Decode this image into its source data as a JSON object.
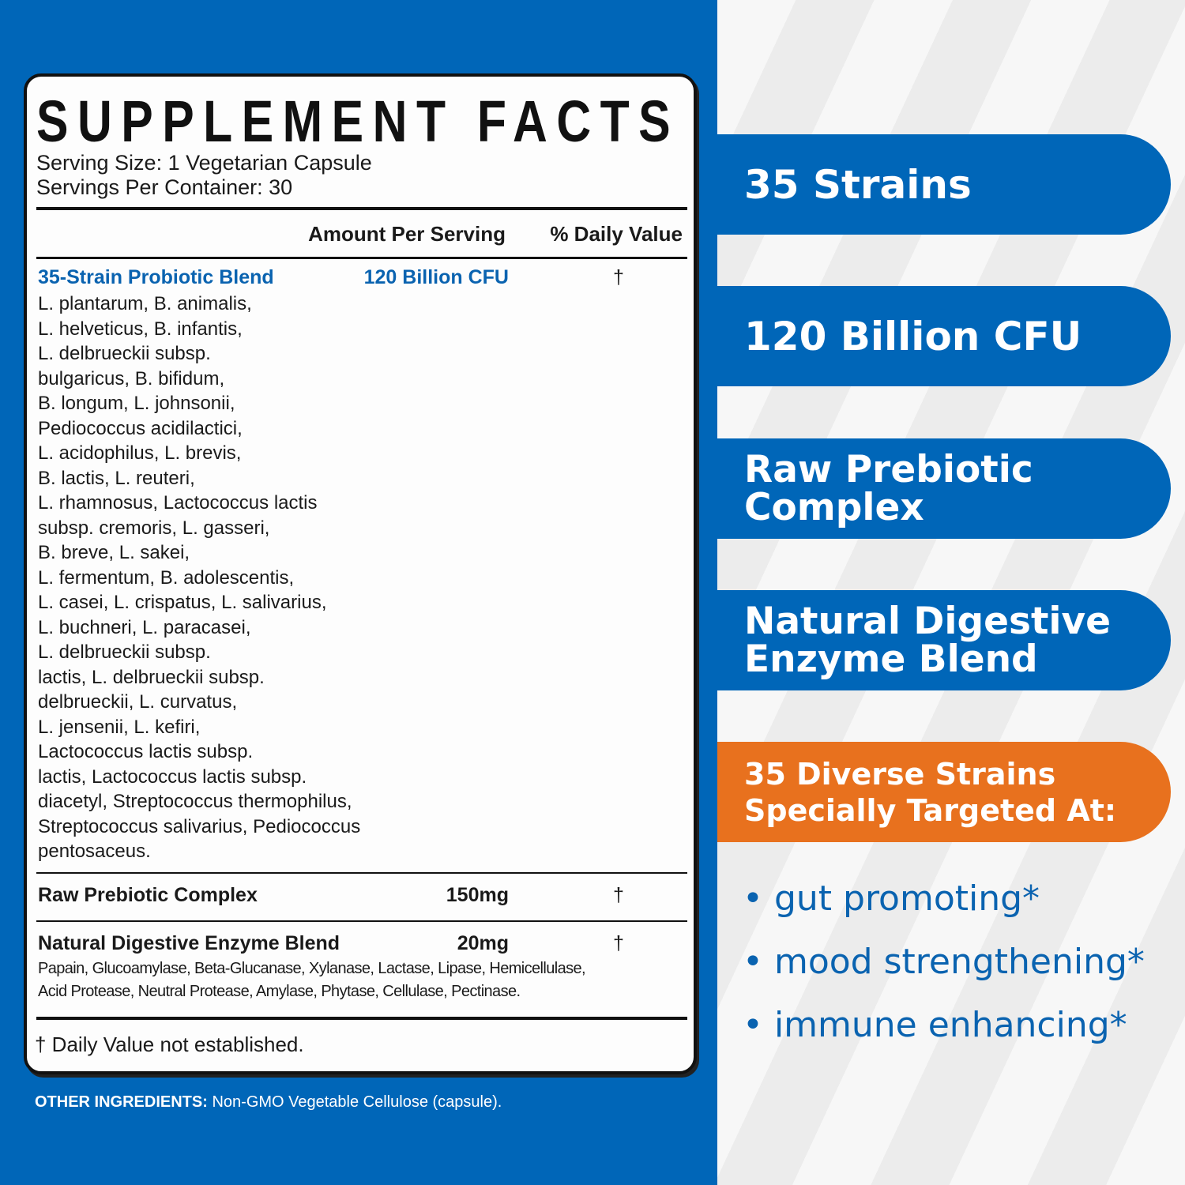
{
  "label": {
    "title": "SUPPLEMENT FACTS",
    "serving_size": "Serving Size: 1 Vegetarian Capsule",
    "servings_per_container": "Servings Per Container: 30",
    "header": {
      "amount": "Amount Per Serving",
      "daily_value": "% Daily Value"
    },
    "rows": [
      {
        "name": "35-Strain Probiotic Blend",
        "amount": "120 Billion CFU",
        "dv": "†",
        "details": [
          "L. plantarum, B. animalis,",
          "L. helveticus, B. infantis,",
          "L. delbrueckii subsp.",
          "bulgaricus, B. bifidum,",
          "B. longum, L. johnsonii,",
          "Pediococcus acidilactici,",
          "L. acidophilus, L. brevis,",
          "B. lactis,  L. reuteri,",
          "L. rhamnosus, Lactococcus lactis",
          "subsp. cremoris, L. gasseri,",
          "B. breve, L. sakei,",
          "L. fermentum, B. adolescentis,",
          "L. casei,  L. crispatus, L. salivarius,",
          "L. buchneri, L. paracasei,",
          "L. delbrueckii subsp.",
          "lactis, L. delbrueckii subsp.",
          "delbrueckii, L. curvatus,",
          "L. jensenii, L. kefiri,",
          "Lactococcus lactis subsp.",
          "lactis, Lactococcus lactis subsp.",
          "diacetyl, Streptococcus thermophilus,",
          "Streptococcus salivarius, Pediococcus",
          "pentosaceus."
        ]
      },
      {
        "name": "Raw Prebiotic Complex",
        "amount": "150mg",
        "dv": "†"
      },
      {
        "name": "Natural Digestive Enzyme Blend",
        "amount": "20mg",
        "dv": "†",
        "details": [
          "Papain, Glucoamylase, Beta-Glucanase, Xylanase, Lactase, Lipase, Hemicellulase,",
          "Acid Protease, Neutral Protease, Amylase, Phytase, Cellulase, Pectinase."
        ]
      }
    ],
    "footnote": "† Daily Value not established."
  },
  "other_ingredients": {
    "label": "OTHER INGREDIENTS:",
    "value": " Non-GMO Vegetable Cellulose (capsule)."
  },
  "banners": [
    {
      "line1": "35 Strains",
      "line2": ""
    },
    {
      "line1": "120 Billion CFU",
      "line2": ""
    },
    {
      "line1": "Raw Prebiotic",
      "line2": "Complex"
    },
    {
      "line1": "Natural Digestive",
      "line2": "Enzyme Blend"
    },
    {
      "line1": "35 Diverse Strains",
      "line2": "Specially Targeted At:"
    }
  ],
  "benefits": [
    "gut promoting*",
    "mood strengthening*",
    "immune enhancing*"
  ],
  "colors": {
    "brand_blue": "#0066b8",
    "accent_orange": "#e8711e",
    "text_blue": "#0a63b0"
  }
}
